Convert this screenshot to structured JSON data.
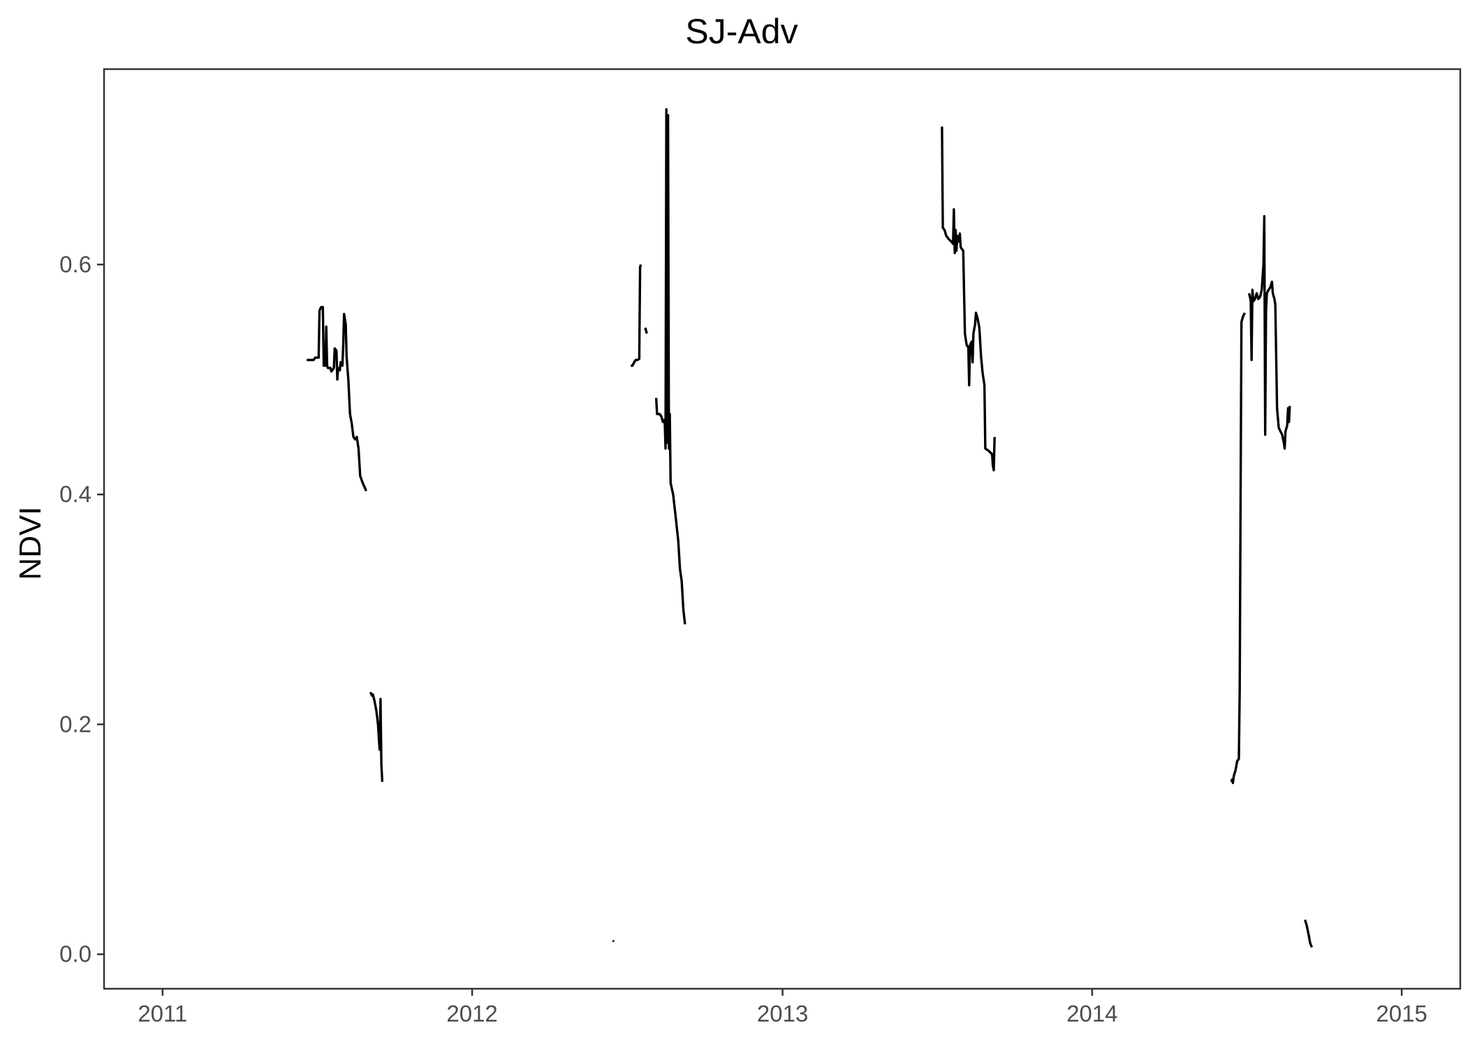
{
  "chart_data": {
    "type": "line",
    "title": "SJ-Adv",
    "xlabel": "",
    "ylabel": "NDVI",
    "x_type": "date",
    "xlim": [
      "2010-10-24",
      "2015-03-11"
    ],
    "ylim": [
      -0.03,
      0.77
    ],
    "x_ticks": [
      "2011-01-01",
      "2012-01-01",
      "2013-01-01",
      "2014-01-01",
      "2015-01-01"
    ],
    "x_tick_labels": [
      "2011",
      "2012",
      "2013",
      "2014",
      "2015"
    ],
    "y_ticks": [
      0.0,
      0.2,
      0.4,
      0.6
    ],
    "y_tick_labels": [
      "0.0",
      "0.2",
      "0.4",
      "0.6"
    ],
    "grid": false,
    "legend": "none",
    "line_color": "#000000",
    "series": [
      {
        "segments": [
          [
            [
              "2011-06-20",
              0.517
            ],
            [
              "2011-06-28",
              0.517
            ],
            [
              "2011-06-30",
              0.519
            ],
            [
              "2011-07-04",
              0.519
            ],
            [
              "2011-07-05",
              0.56
            ],
            [
              "2011-07-07",
              0.563
            ],
            [
              "2011-07-09",
              0.563
            ],
            [
              "2011-07-10",
              0.512
            ],
            [
              "2011-07-12",
              0.512
            ],
            [
              "2011-07-13",
              0.546
            ],
            [
              "2011-07-14",
              0.512
            ],
            [
              "2011-07-15",
              0.51
            ],
            [
              "2011-07-18",
              0.51
            ],
            [
              "2011-07-19",
              0.507
            ],
            [
              "2011-07-22",
              0.51
            ],
            [
              "2011-07-23",
              0.527
            ],
            [
              "2011-07-25",
              0.525
            ],
            [
              "2011-07-26",
              0.5
            ],
            [
              "2011-07-27",
              0.51
            ],
            [
              "2011-07-29",
              0.508
            ],
            [
              "2011-07-30",
              0.515
            ],
            [
              "2011-08-01",
              0.512
            ],
            [
              "2011-08-02",
              0.53
            ],
            [
              "2011-08-03",
              0.557
            ],
            [
              "2011-08-05",
              0.548
            ],
            [
              "2011-08-06",
              0.52
            ],
            [
              "2011-08-08",
              0.5
            ],
            [
              "2011-08-10",
              0.47
            ],
            [
              "2011-08-12",
              0.462
            ],
            [
              "2011-08-14",
              0.45
            ],
            [
              "2011-08-16",
              0.448
            ],
            [
              "2011-08-18",
              0.45
            ],
            [
              "2011-08-20",
              0.44
            ],
            [
              "2011-08-22",
              0.416
            ],
            [
              "2011-08-25",
              0.41
            ],
            [
              "2011-08-28",
              0.405
            ],
            [
              "2011-08-29",
              0.403
            ]
          ],
          [
            [
              "2011-09-03",
              0.228
            ],
            [
              "2011-09-05",
              0.225
            ],
            [
              "2011-09-06",
              0.226
            ],
            [
              "2011-09-08",
              0.22
            ],
            [
              "2011-09-10",
              0.212
            ],
            [
              "2011-09-12",
              0.2
            ],
            [
              "2011-09-13",
              0.188
            ],
            [
              "2011-09-14",
              0.178
            ],
            [
              "2011-09-15",
              0.222
            ],
            [
              "2011-09-16",
              0.165
            ],
            [
              "2011-09-17",
              0.15
            ]
          ],
          [
            [
              "2012-06-15",
              0.012
            ],
            [
              "2012-06-16",
              0.011
            ]
          ],
          [
            [
              "2012-07-06",
              0.512
            ],
            [
              "2012-07-08",
              0.512
            ],
            [
              "2012-07-10",
              0.515
            ],
            [
              "2012-07-12",
              0.517
            ],
            [
              "2012-07-14",
              0.517
            ],
            [
              "2012-07-16",
              0.518
            ],
            [
              "2012-07-17",
              0.598
            ],
            [
              "2012-07-18",
              0.6
            ]
          ],
          [
            [
              "2012-07-23",
              0.545
            ],
            [
              "2012-07-25",
              0.54
            ]
          ],
          [
            [
              "2012-08-05",
              0.484
            ],
            [
              "2012-08-06",
              0.47
            ],
            [
              "2012-08-09",
              0.47
            ],
            [
              "2012-08-11",
              0.468
            ],
            [
              "2012-08-13",
              0.463
            ],
            [
              "2012-08-15",
              0.465
            ],
            [
              "2012-08-16",
              0.44
            ],
            [
              "2012-08-17",
              0.735
            ],
            [
              "2012-08-18",
              0.445
            ],
            [
              "2012-08-19",
              0.73
            ],
            [
              "2012-08-20",
              0.44
            ],
            [
              "2012-08-21",
              0.47
            ],
            [
              "2012-08-22",
              0.41
            ],
            [
              "2012-08-25",
              0.4
            ],
            [
              "2012-08-28",
              0.38
            ],
            [
              "2012-08-31",
              0.36
            ],
            [
              "2012-09-02",
              0.335
            ],
            [
              "2012-09-04",
              0.325
            ],
            [
              "2012-09-06",
              0.3
            ],
            [
              "2012-09-08",
              0.287
            ]
          ],
          [
            [
              "2013-07-08",
              0.72
            ],
            [
              "2013-07-09",
              0.632
            ],
            [
              "2013-07-11",
              0.63
            ],
            [
              "2013-07-13",
              0.625
            ],
            [
              "2013-07-16",
              0.622
            ],
            [
              "2013-07-19",
              0.62
            ],
            [
              "2013-07-21",
              0.618
            ],
            [
              "2013-07-22",
              0.648
            ],
            [
              "2013-07-23",
              0.61
            ],
            [
              "2013-07-24",
              0.63
            ],
            [
              "2013-07-25",
              0.612
            ],
            [
              "2013-07-26",
              0.625
            ],
            [
              "2013-07-28",
              0.62
            ],
            [
              "2013-07-29",
              0.627
            ],
            [
              "2013-07-30",
              0.615
            ],
            [
              "2013-08-02",
              0.612
            ],
            [
              "2013-08-04",
              0.54
            ],
            [
              "2013-08-06",
              0.53
            ],
            [
              "2013-08-08",
              0.528
            ],
            [
              "2013-08-09",
              0.495
            ],
            [
              "2013-08-10",
              0.53
            ],
            [
              "2013-08-12",
              0.533
            ],
            [
              "2013-08-13",
              0.515
            ],
            [
              "2013-08-14",
              0.54
            ],
            [
              "2013-08-16",
              0.548
            ],
            [
              "2013-08-17",
              0.558
            ],
            [
              "2013-08-19",
              0.553
            ],
            [
              "2013-08-21",
              0.545
            ],
            [
              "2013-08-23",
              0.52
            ],
            [
              "2013-08-25",
              0.505
            ],
            [
              "2013-08-27",
              0.495
            ],
            [
              "2013-08-28",
              0.44
            ],
            [
              "2013-09-01",
              0.438
            ],
            [
              "2013-09-05",
              0.435
            ],
            [
              "2013-09-06",
              0.425
            ],
            [
              "2013-09-07",
              0.421
            ],
            [
              "2013-09-08",
              0.45
            ]
          ],
          [
            [
              "2014-06-14",
              0.15
            ],
            [
              "2014-06-15",
              0.152
            ],
            [
              "2014-06-16",
              0.149
            ],
            [
              "2014-06-17",
              0.155
            ],
            [
              "2014-06-19",
              0.16
            ],
            [
              "2014-06-21",
              0.168
            ],
            [
              "2014-06-23",
              0.17
            ],
            [
              "2014-06-24",
              0.23
            ],
            [
              "2014-06-25",
              0.39
            ],
            [
              "2014-06-26",
              0.55
            ],
            [
              "2014-06-28",
              0.555
            ],
            [
              "2014-06-30",
              0.558
            ]
          ],
          [
            [
              "2014-07-05",
              0.575
            ],
            [
              "2014-07-06",
              0.572
            ],
            [
              "2014-07-07",
              0.568
            ],
            [
              "2014-07-08",
              0.517
            ],
            [
              "2014-07-09",
              0.578
            ],
            [
              "2014-07-10",
              0.568
            ],
            [
              "2014-07-12",
              0.57
            ],
            [
              "2014-07-14",
              0.575
            ],
            [
              "2014-07-16",
              0.57
            ],
            [
              "2014-07-18",
              0.572
            ],
            [
              "2014-07-20",
              0.578
            ],
            [
              "2014-07-22",
              0.6
            ],
            [
              "2014-07-23",
              0.642
            ],
            [
              "2014-07-24",
              0.452
            ],
            [
              "2014-07-25",
              0.56
            ],
            [
              "2014-07-26",
              0.575
            ],
            [
              "2014-07-28",
              0.578
            ],
            [
              "2014-07-30",
              0.58
            ],
            [
              "2014-08-01",
              0.585
            ],
            [
              "2014-08-02",
              0.575
            ],
            [
              "2014-08-04",
              0.57
            ],
            [
              "2014-08-05",
              0.565
            ],
            [
              "2014-08-07",
              0.475
            ],
            [
              "2014-08-09",
              0.458
            ],
            [
              "2014-08-11",
              0.455
            ],
            [
              "2014-08-13",
              0.452
            ],
            [
              "2014-08-15",
              0.445
            ],
            [
              "2014-08-16",
              0.44
            ],
            [
              "2014-08-17",
              0.455
            ],
            [
              "2014-08-19",
              0.46
            ],
            [
              "2014-08-20",
              0.475
            ],
            [
              "2014-08-21",
              0.463
            ],
            [
              "2014-08-22",
              0.477
            ]
          ],
          [
            [
              "2014-09-09",
              0.03
            ],
            [
              "2014-09-11",
              0.025
            ],
            [
              "2014-09-13",
              0.018
            ],
            [
              "2014-09-15",
              0.01
            ],
            [
              "2014-09-17",
              0.006
            ]
          ]
        ]
      }
    ]
  }
}
